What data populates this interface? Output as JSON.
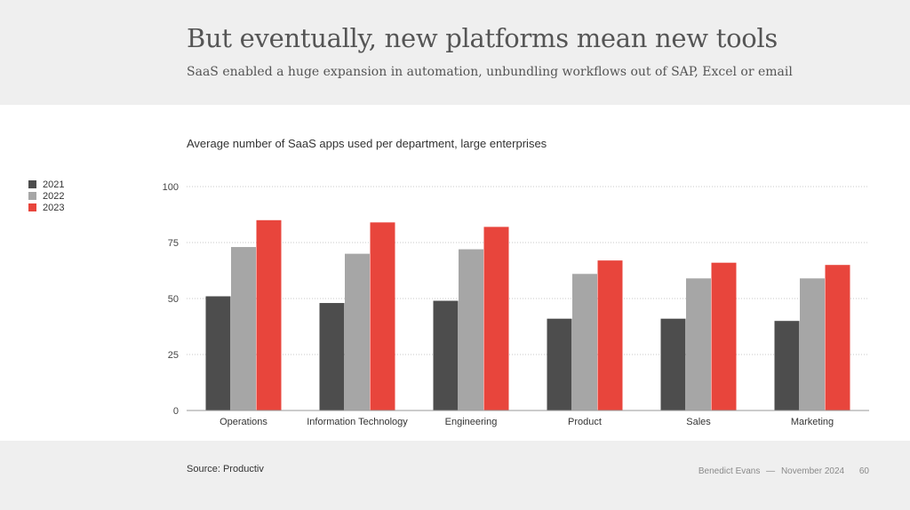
{
  "header": {
    "title": "But eventually, new platforms mean new tools",
    "subtitle": "SaaS enabled a huge expansion in automation, unbundling workflows out of SAP, Excel or email"
  },
  "chart_data": {
    "type": "bar",
    "title": "Average number of SaaS apps used per department, large enterprises",
    "categories": [
      "Operations",
      "Information Technology",
      "Engineering",
      "Product",
      "Sales",
      "Marketing"
    ],
    "series": [
      {
        "name": "2021",
        "color": "#4d4d4d",
        "values": [
          51,
          48,
          49,
          41,
          41,
          40
        ]
      },
      {
        "name": "2022",
        "color": "#a6a6a6",
        "values": [
          73,
          70,
          72,
          61,
          59,
          59
        ]
      },
      {
        "name": "2023",
        "color": "#e8453c",
        "values": [
          85,
          84,
          82,
          67,
          66,
          65
        ]
      }
    ],
    "yticks": [
      "0",
      "25",
      "50",
      "75",
      "100"
    ],
    "ylim": [
      0,
      100
    ],
    "grid": true,
    "legend_position": "left"
  },
  "footer": {
    "source": "Source: Productiv",
    "author": "Benedict Evans",
    "separator": "—",
    "date": "November 2024",
    "page": "60"
  }
}
